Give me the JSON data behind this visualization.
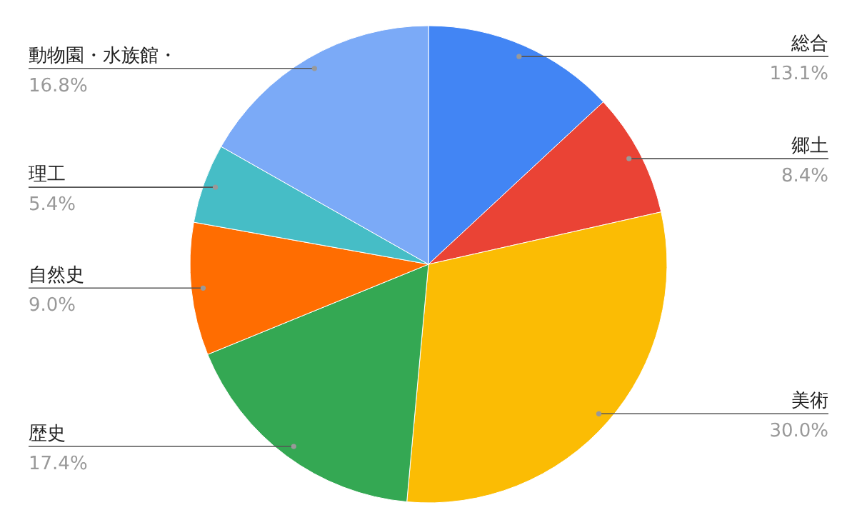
{
  "chart_data": {
    "type": "pie",
    "categories": [
      "総合",
      "郷土",
      "美術",
      "歴史",
      "自然史",
      "理工",
      "動物園・水族館・"
    ],
    "values": [
      13.1,
      8.4,
      30.0,
      17.4,
      9.0,
      5.4,
      16.8
    ],
    "colors": [
      "#4285f4",
      "#ea4335",
      "#fbbc04",
      "#34a853",
      "#ff6d01",
      "#46bdc6",
      "#7baaf7"
    ],
    "value_labels": [
      "13.1%",
      "8.4%",
      "30.0%",
      "17.4%",
      "9.0%",
      "5.4%",
      "16.8%"
    ]
  }
}
